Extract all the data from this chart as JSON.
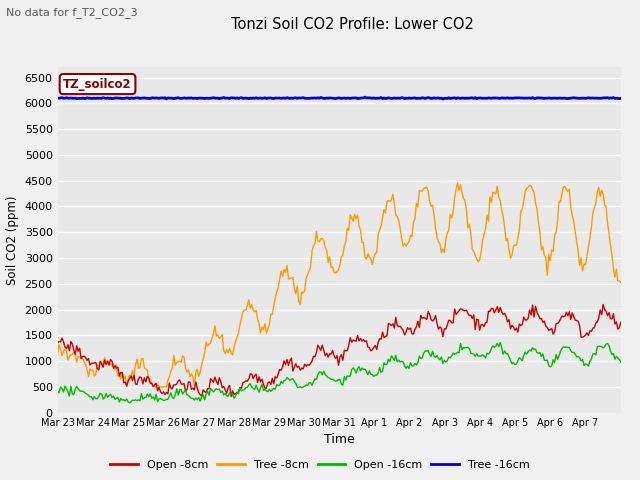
{
  "title": "Tonzi Soil CO2 Profile: Lower CO2",
  "subtitle": "No data for f_T2_CO2_3",
  "ylabel": "Soil CO2 (ppm)",
  "xlabel": "Time",
  "ylim": [
    0,
    6700
  ],
  "yticks": [
    0,
    500,
    1000,
    1500,
    2000,
    2500,
    3000,
    3500,
    4000,
    4500,
    5000,
    5500,
    6000,
    6500
  ],
  "legend_label": "TZ_soilco2",
  "bg_color": "#e8e8e8",
  "fig_bg_color": "#f0f0f0",
  "line_colors": {
    "open8": "#cc0000",
    "tree8": "#ff9900",
    "open16": "#00bb00",
    "tree16": "#0000cc"
  },
  "legend_entries": [
    "Open -8cm",
    "Tree -8cm",
    "Open -16cm",
    "Tree -16cm"
  ],
  "x_tick_labels": [
    "Mar 23",
    "Mar 24",
    "Mar 25",
    "Mar 26",
    "Mar 27",
    "Mar 28",
    "Mar 29",
    "Mar 30",
    "Mar 31",
    "Apr 1",
    "Apr 2",
    "Apr 3",
    "Apr 4",
    "Apr 5",
    "Apr 6",
    "Apr 7"
  ]
}
